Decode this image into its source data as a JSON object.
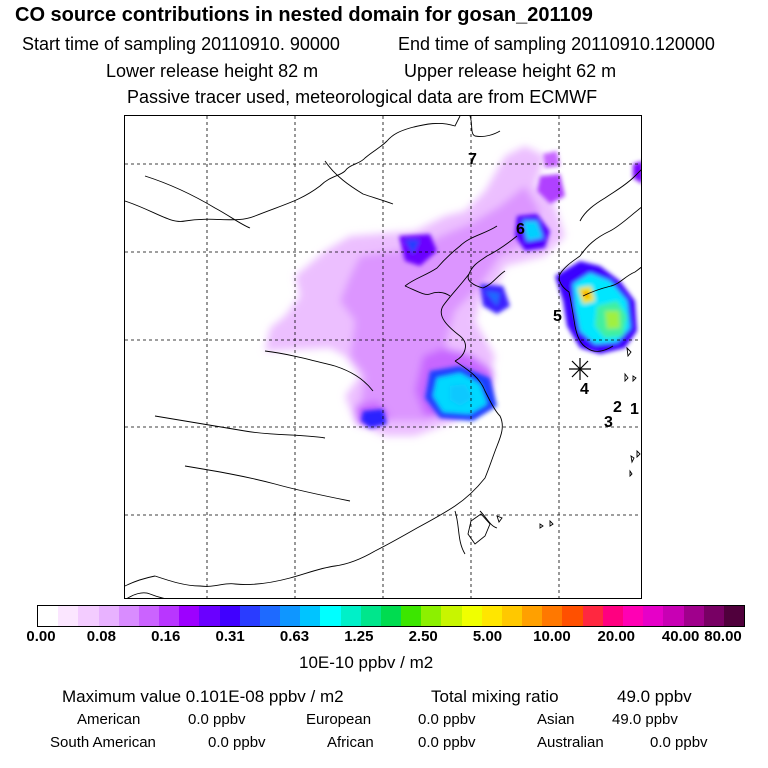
{
  "header": {
    "title": "CO  source contributions in nested domain for gosan_201109",
    "start_time": "Start time of sampling 20110910. 90000",
    "end_time": "End time of sampling 20110910.120000",
    "lower_release": "Lower release height   82 m",
    "upper_release": "Upper release height   62 m",
    "tracer_note": "Passive tracer used, meteorological data are from ECMWF"
  },
  "map": {
    "site_labels": [
      "7",
      "6",
      "5",
      "4",
      "3",
      "2",
      "1"
    ]
  },
  "colorbar": {
    "ticks": [
      "0.00",
      "0.08",
      "0.16",
      "0.31",
      "0.63",
      "1.25",
      "2.50",
      "5.00",
      "10.00",
      "20.00",
      "40.00",
      "80.00"
    ],
    "unit": "10E-10 ppbv / m2",
    "colors": [
      "#ffffff",
      "#fbe6ff",
      "#f3ccff",
      "#e8b2ff",
      "#d98cff",
      "#cb63ff",
      "#b936ff",
      "#9d00ff",
      "#6a00ff",
      "#4000ff",
      "#2a3cff",
      "#1e6aff",
      "#0f96ff",
      "#00c4ff",
      "#00ffff",
      "#00f0c8",
      "#00e68c",
      "#00dc50",
      "#3ce600",
      "#8cf000",
      "#c8f500",
      "#f0ff00",
      "#ffe600",
      "#ffc800",
      "#ffa000",
      "#ff7800",
      "#ff5000",
      "#ff2840",
      "#ff0080",
      "#ff00b4",
      "#e600c8",
      "#c800b4",
      "#a0008c",
      "#780064",
      "#50003c"
    ]
  },
  "stats": {
    "max_label": "Maximum value  0.101E-08 ppbv / m2",
    "total_label": "Total mixing ratio",
    "total_value": "49.0 ppbv",
    "regions": [
      {
        "name": "American",
        "value": "0.0 ppbv"
      },
      {
        "name": "European",
        "value": "0.0 ppbv"
      },
      {
        "name": "Asian",
        "value": "49.0 ppbv"
      },
      {
        "name": "South American",
        "value": "0.0 ppbv"
      },
      {
        "name": "African",
        "value": "0.0 ppbv"
      },
      {
        "name": "Australian",
        "value": "0.0 ppbv"
      }
    ]
  }
}
